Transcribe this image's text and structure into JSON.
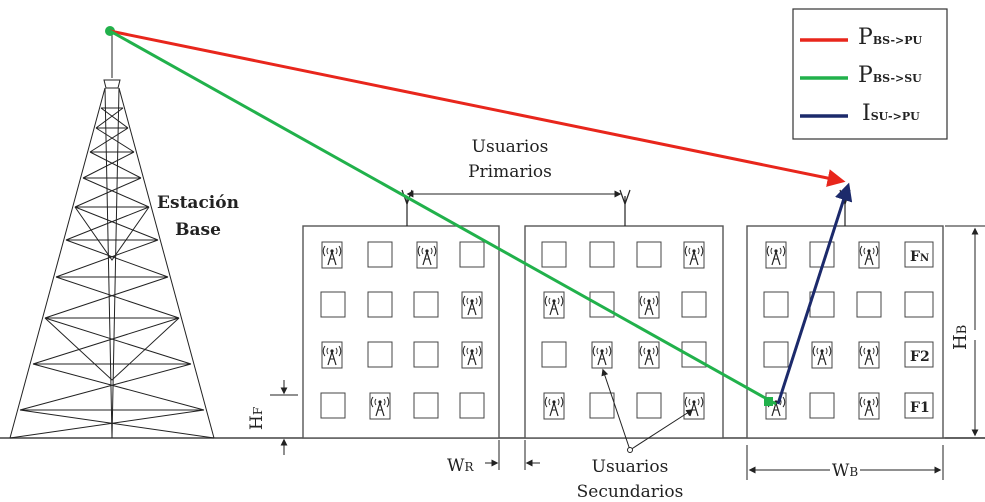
{
  "legend": {
    "items": [
      {
        "main": "P",
        "sub": "BS->PU",
        "color": "#e8261c"
      },
      {
        "main": "P",
        "sub": "BS->SU",
        "color": "#21b14b"
      },
      {
        "main": "I",
        "sub": "SU->PU",
        "color": "#1c2a6b"
      }
    ]
  },
  "labels": {
    "base_station_line1": "Estación",
    "base_station_line2": "Base",
    "primary_users_line1": "Usuarios",
    "primary_users_line2": "Primarios",
    "secondary_users_line1": "Usuarios",
    "secondary_users_line2": "Secundarios",
    "hf_main": "H",
    "hf_sub": "F",
    "hb_main": "H",
    "hb_sub": "B",
    "wr_main": "W",
    "wr_sub": "R",
    "wb_main": "W",
    "wb_sub": "B",
    "fn_main": "F",
    "fn_sub": "N",
    "f2": "F2",
    "f1": "F1"
  },
  "icons": {
    "tower": "lattice-tower-icon",
    "antenna": "antenna-icon",
    "secondary_user": "wireless-device-icon"
  },
  "colors": {
    "red": "#e8261c",
    "green": "#21b14b",
    "navy": "#1c2a6b"
  }
}
